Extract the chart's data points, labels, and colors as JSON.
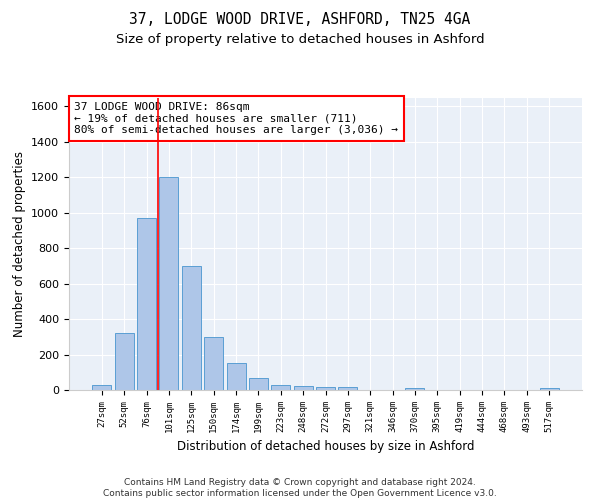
{
  "title1": "37, LODGE WOOD DRIVE, ASHFORD, TN25 4GA",
  "title2": "Size of property relative to detached houses in Ashford",
  "xlabel": "Distribution of detached houses by size in Ashford",
  "ylabel": "Number of detached properties",
  "categories": [
    "27sqm",
    "52sqm",
    "76sqm",
    "101sqm",
    "125sqm",
    "150sqm",
    "174sqm",
    "199sqm",
    "223sqm",
    "248sqm",
    "272sqm",
    "297sqm",
    "321sqm",
    "346sqm",
    "370sqm",
    "395sqm",
    "419sqm",
    "444sqm",
    "468sqm",
    "493sqm",
    "517sqm"
  ],
  "values": [
    30,
    320,
    970,
    1200,
    700,
    300,
    155,
    70,
    30,
    20,
    15,
    15,
    0,
    0,
    12,
    0,
    0,
    0,
    0,
    0,
    12
  ],
  "bar_color": "#aec6e8",
  "bar_edge_color": "#5a9fd4",
  "annotation_text": "37 LODGE WOOD DRIVE: 86sqm\n← 19% of detached houses are smaller (711)\n80% of semi-detached houses are larger (3,036) →",
  "annotation_box_color": "white",
  "annotation_border_color": "red",
  "line_color": "red",
  "ylim": [
    0,
    1650
  ],
  "yticks": [
    0,
    200,
    400,
    600,
    800,
    1000,
    1200,
    1400,
    1600
  ],
  "bg_color": "#eaf0f8",
  "footer": "Contains HM Land Registry data © Crown copyright and database right 2024.\nContains public sector information licensed under the Open Government Licence v3.0.",
  "title1_fontsize": 10.5,
  "title2_fontsize": 9.5,
  "xlabel_fontsize": 8.5,
  "ylabel_fontsize": 8.5,
  "annotation_fontsize": 8,
  "footer_fontsize": 6.5
}
